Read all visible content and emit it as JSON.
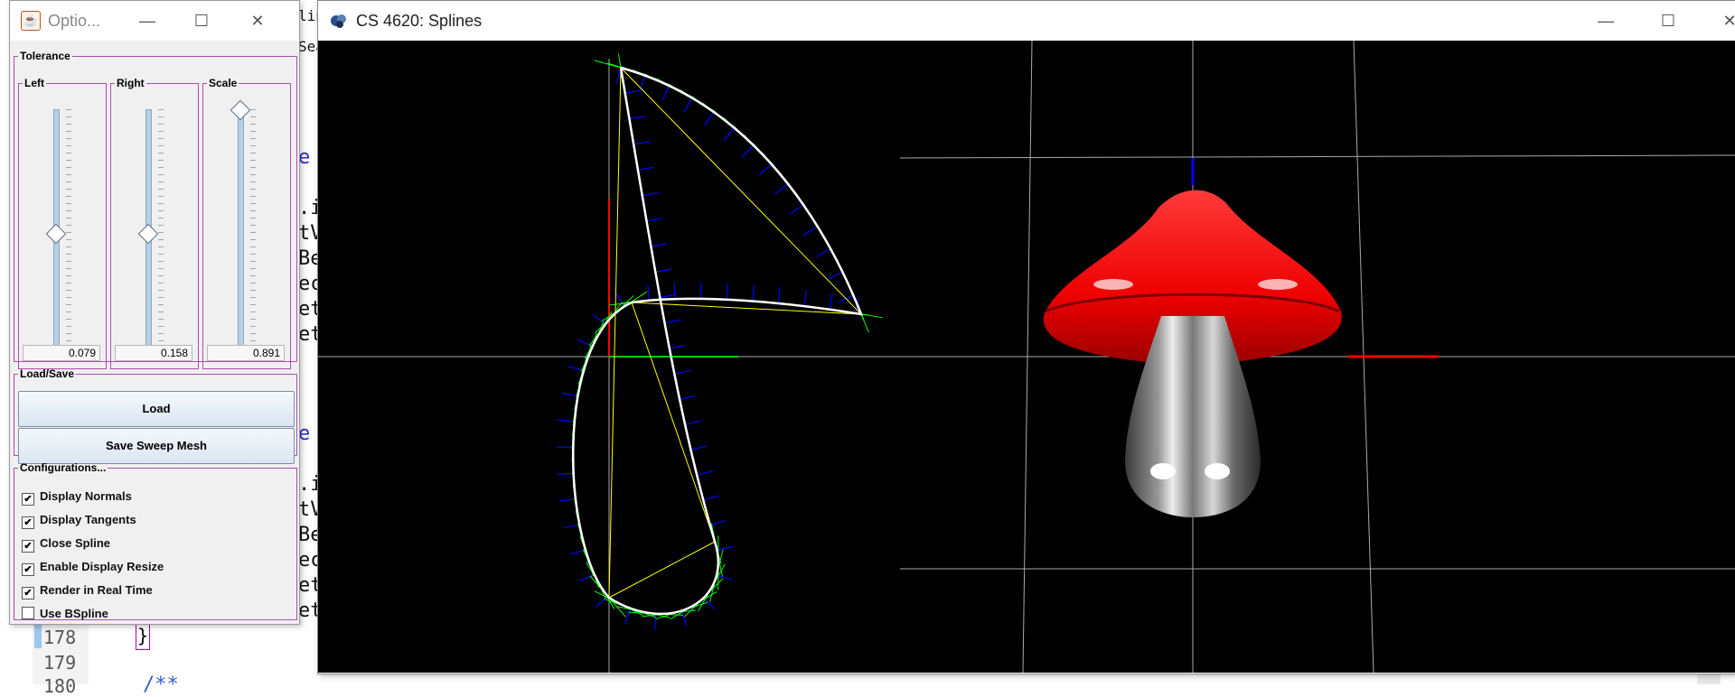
{
  "ide": {
    "line_numbers": [
      "178",
      "179",
      "180"
    ],
    "closing_brace": "}",
    "comment_start": "/**",
    "code_fragments_top": [
      "lin",
      "Sea"
    ],
    "code_fragments": [
      "e S",
      ".ist",
      "tVe",
      "Bez",
      "ect",
      "etu",
      "etu",
      "e S",
      ".ist",
      "tVe",
      "Bez",
      "ect",
      "etu",
      "etu"
    ]
  },
  "options_window": {
    "title": "Optio...",
    "tolerance": {
      "label": "Tolerance",
      "sliders": [
        {
          "label": "Left",
          "value": "0.079",
          "level": 0.5
        },
        {
          "label": "Right",
          "value": "0.158",
          "level": 0.5
        },
        {
          "label": "Scale",
          "value": "0.891",
          "level": 1.0
        }
      ]
    },
    "load_save": {
      "label": "Load/Save",
      "load_button": "Load",
      "save_button": "Save Sweep Mesh"
    },
    "configurations": {
      "label": "Configurations...",
      "options": [
        {
          "label": "Display Normals",
          "checked": true
        },
        {
          "label": "Display Tangents",
          "checked": true
        },
        {
          "label": "Close Spline",
          "checked": true
        },
        {
          "label": "Enable Display Resize",
          "checked": true
        },
        {
          "label": "Render in Real Time",
          "checked": true
        },
        {
          "label": "Use BSpline",
          "checked": false
        }
      ]
    }
  },
  "splines_window": {
    "title": "CS 4620: Splines"
  },
  "colors": {
    "frame_border": "#b04cb0",
    "spline_curve": "#ffffff",
    "control_polygon": "#ffff00",
    "tangents": "#00ff00",
    "normals": "#0000ff",
    "mushroom_cap": "#ff0000",
    "mushroom_stem": "#808080"
  }
}
